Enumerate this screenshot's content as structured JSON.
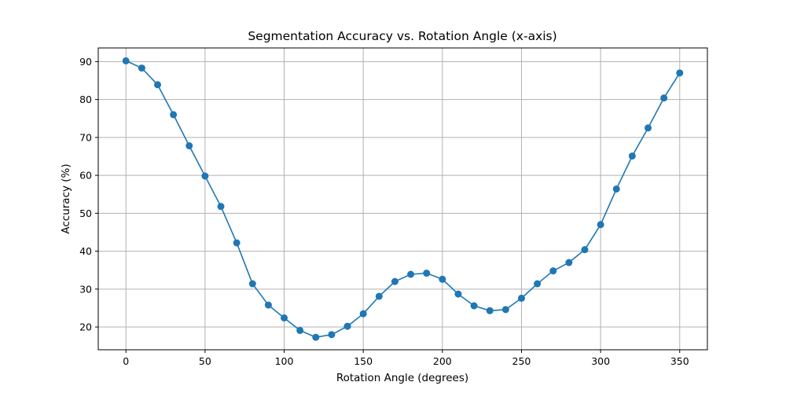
{
  "chart_data": {
    "type": "line",
    "title": "Segmentation Accuracy vs. Rotation Angle (x-axis)",
    "xlabel": "Rotation Angle (degrees)",
    "ylabel": "Accuracy (%)",
    "xlim": [
      -17.5,
      367.5
    ],
    "ylim": [
      14.0,
      93.6
    ],
    "xticks": [
      0,
      50,
      100,
      150,
      200,
      250,
      300,
      350
    ],
    "yticks": [
      20,
      30,
      40,
      50,
      60,
      70,
      80,
      90
    ],
    "grid": true,
    "series": [
      {
        "color": "#1f77b4",
        "marker": "circle",
        "x": [
          0,
          10,
          20,
          30,
          40,
          50,
          60,
          70,
          80,
          90,
          100,
          110,
          120,
          130,
          140,
          150,
          160,
          170,
          180,
          190,
          200,
          210,
          220,
          230,
          240,
          250,
          260,
          270,
          280,
          290,
          300,
          310,
          320,
          330,
          340,
          350
        ],
        "y": [
          90.2,
          88.3,
          83.9,
          76.0,
          67.8,
          59.8,
          51.8,
          42.2,
          31.4,
          25.8,
          22.4,
          19.1,
          17.3,
          18.0,
          20.2,
          23.5,
          28.1,
          32.0,
          33.9,
          34.2,
          32.6,
          28.7,
          25.6,
          24.3,
          24.6,
          27.6,
          31.4,
          34.8,
          37.0,
          40.4,
          47.0,
          56.4,
          65.1,
          72.5,
          80.4,
          87.0
        ]
      }
    ]
  }
}
